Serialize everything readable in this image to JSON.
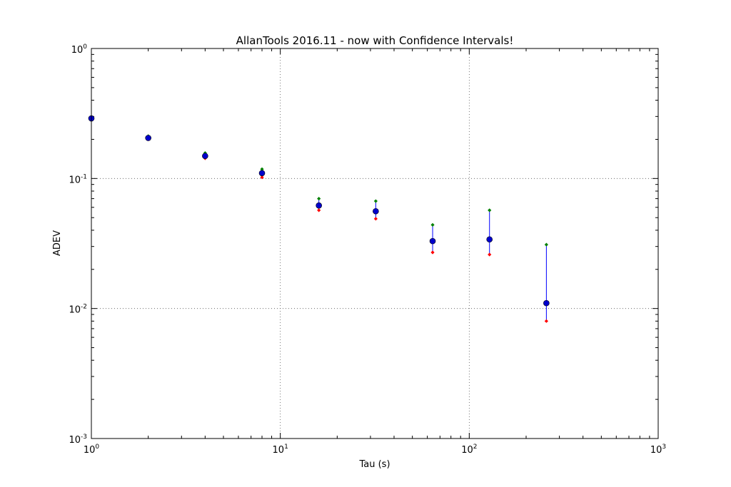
{
  "chart_data": {
    "type": "scatter",
    "title": "AllanTools 2016.11 - now with Confidence Intervals!",
    "xlabel": "Tau (s)",
    "ylabel": "ADEV",
    "xscale": "log",
    "yscale": "log",
    "xlim": [
      1,
      1000
    ],
    "ylim": [
      0.001,
      1
    ],
    "grid": true,
    "x_tick_labels": [
      {
        "value": 1,
        "base": "10",
        "exp": "0"
      },
      {
        "value": 10,
        "base": "10",
        "exp": "1"
      },
      {
        "value": 100,
        "base": "10",
        "exp": "2"
      },
      {
        "value": 1000,
        "base": "10",
        "exp": "3"
      }
    ],
    "y_tick_labels": [
      {
        "value": 0.001,
        "base": "10",
        "exp": "-3"
      },
      {
        "value": 0.01,
        "base": "10",
        "exp": "-2"
      },
      {
        "value": 0.1,
        "base": "10",
        "exp": "-1"
      },
      {
        "value": 1,
        "base": "10",
        "exp": "0"
      }
    ],
    "colors": {
      "adev": "#0000cc",
      "upper_bound": "#008000",
      "lower_bound": "#ff0000",
      "errorbar": "#0000ff",
      "grid": "#555555"
    },
    "series": [
      {
        "key": "adev",
        "marker": "circle",
        "points": [
          {
            "tau": 1,
            "adev": 0.29,
            "lower": 0.285,
            "upper": 0.295
          },
          {
            "tau": 2,
            "adev": 0.205,
            "lower": 0.2,
            "upper": 0.212
          },
          {
            "tau": 4,
            "adev": 0.149,
            "lower": 0.143,
            "upper": 0.157
          },
          {
            "tau": 8,
            "adev": 0.11,
            "lower": 0.102,
            "upper": 0.118
          },
          {
            "tau": 16,
            "adev": 0.062,
            "lower": 0.057,
            "upper": 0.07
          },
          {
            "tau": 32,
            "adev": 0.056,
            "lower": 0.049,
            "upper": 0.067
          },
          {
            "tau": 64,
            "adev": 0.033,
            "lower": 0.027,
            "upper": 0.044
          },
          {
            "tau": 128,
            "adev": 0.034,
            "lower": 0.026,
            "upper": 0.057
          },
          {
            "tau": 256,
            "adev": 0.011,
            "lower": 0.008,
            "upper": 0.031
          }
        ]
      }
    ]
  }
}
